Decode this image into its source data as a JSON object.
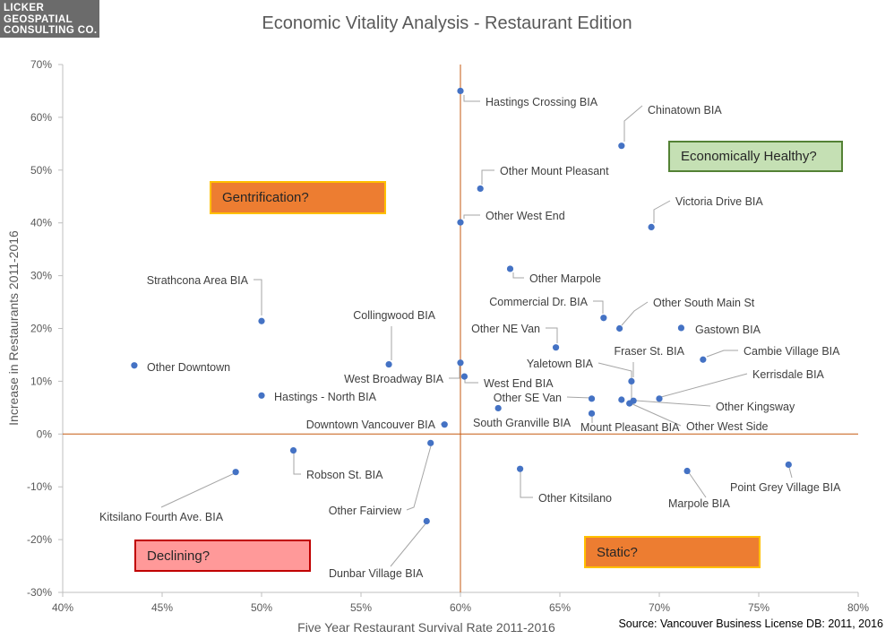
{
  "logo": {
    "line1": "LICKER",
    "line2": "GEOSPATIAL",
    "line3": "CONSULTING CO."
  },
  "source": "Source: Vancouver Business License DB: 2011,  2016",
  "colors": {
    "points": "#4472c4",
    "ref_lines": "#c55a11",
    "axis": "#bfbfbf",
    "label_text": "#404040",
    "leader": "#a6a6a6"
  },
  "quadrant_labels": [
    {
      "text": "Economically Healthy?",
      "fill": "#c5e0b4",
      "border": "#548235"
    },
    {
      "text": "Gentrification?",
      "fill": "#ed7d31",
      "border": "#ffc000"
    },
    {
      "text": "Declining?",
      "fill": "#ff9999",
      "border": "#c00000"
    },
    {
      "text": "Static?",
      "fill": "#ed7d31",
      "border": "#ffc000"
    }
  ],
  "chart_data": {
    "type": "scatter",
    "title": "Economic Vitality Analysis - Restaurant Edition",
    "xlabel": "Five Year Restaurant Survival Rate 2011-2016",
    "ylabel": "Increase in Restaurants 2011-2016",
    "xlim": [
      0.4,
      0.8
    ],
    "ylim": [
      -0.3,
      0.7
    ],
    "x_ticks": [
      0.4,
      0.45,
      0.5,
      0.55,
      0.6,
      0.65,
      0.7,
      0.75,
      0.8
    ],
    "x_tick_labels": [
      "40%",
      "45%",
      "50%",
      "55%",
      "60%",
      "65%",
      "70%",
      "75%",
      "80%"
    ],
    "y_ticks": [
      -0.3,
      -0.2,
      -0.1,
      0.0,
      0.1,
      0.2,
      0.3,
      0.4,
      0.5,
      0.6,
      0.7
    ],
    "y_tick_labels": [
      "-30%",
      "-20%",
      "-10%",
      "0%",
      "10%",
      "20%",
      "30%",
      "40%",
      "50%",
      "60%",
      "70%"
    ],
    "reference_lines": {
      "x": 0.6,
      "y": 0.0
    },
    "grid": false,
    "points": [
      {
        "name": "Hastings Crossing BIA",
        "x": 0.6,
        "y": 0.65
      },
      {
        "name": "Chinatown BIA",
        "x": 0.681,
        "y": 0.546
      },
      {
        "name": "Other Mount Pleasant",
        "x": 0.61,
        "y": 0.465
      },
      {
        "name": "Other West End",
        "x": 0.6,
        "y": 0.401
      },
      {
        "name": "Victoria Drive BIA",
        "x": 0.696,
        "y": 0.392
      },
      {
        "name": "Other Marpole",
        "x": 0.625,
        "y": 0.313
      },
      {
        "name": "Strathcona Area BIA",
        "x": 0.5,
        "y": 0.214
      },
      {
        "name": "Commercial Dr. BIA",
        "x": 0.672,
        "y": 0.22
      },
      {
        "name": "Other South Main St",
        "x": 0.68,
        "y": 0.2
      },
      {
        "name": "Gastown BIA",
        "x": 0.711,
        "y": 0.201
      },
      {
        "name": "Collingwood BIA",
        "x": 0.564,
        "y": 0.132
      },
      {
        "name": "Other NE Van",
        "x": 0.648,
        "y": 0.164
      },
      {
        "name": "Other Downtown",
        "x": 0.436,
        "y": 0.13
      },
      {
        "name": "Fraser St. BIA",
        "x": 0.686,
        "y": 0.1
      },
      {
        "name": "Cambie Village BIA",
        "x": 0.722,
        "y": 0.141
      },
      {
        "name": "West Broadway BIA",
        "x": 0.6,
        "y": 0.135
      },
      {
        "name": "West End BIA",
        "x": 0.602,
        "y": 0.109
      },
      {
        "name": "Yaletown BIA",
        "x": 0.687,
        "y": 0.063
      },
      {
        "name": "Kerrisdale BIA",
        "x": 0.7,
        "y": 0.067
      },
      {
        "name": "Hastings - North BIA",
        "x": 0.5,
        "y": 0.073
      },
      {
        "name": "Other SE Van",
        "x": 0.666,
        "y": 0.067
      },
      {
        "name": "Other Kingsway",
        "x": 0.681,
        "y": 0.065
      },
      {
        "name": "South Granville BIA",
        "x": 0.619,
        "y": 0.049
      },
      {
        "name": "Mount Pleasant BIA",
        "x": 0.666,
        "y": 0.039
      },
      {
        "name": "Other West Side",
        "x": 0.685,
        "y": 0.058
      },
      {
        "name": "Downtown Vancouver BIA",
        "x": 0.592,
        "y": 0.018
      },
      {
        "name": "Other Fairview",
        "x": 0.585,
        "y": -0.017
      },
      {
        "name": "Robson St. BIA",
        "x": 0.516,
        "y": -0.031
      },
      {
        "name": "Kitsilano Fourth Ave. BIA",
        "x": 0.487,
        "y": -0.072
      },
      {
        "name": "Other Kitsilano",
        "x": 0.63,
        "y": -0.066
      },
      {
        "name": "Marpole BIA",
        "x": 0.714,
        "y": -0.07
      },
      {
        "name": "Point Grey Village BIA",
        "x": 0.765,
        "y": -0.058
      },
      {
        "name": "Dunbar Village BIA",
        "x": 0.583,
        "y": -0.165
      }
    ]
  }
}
